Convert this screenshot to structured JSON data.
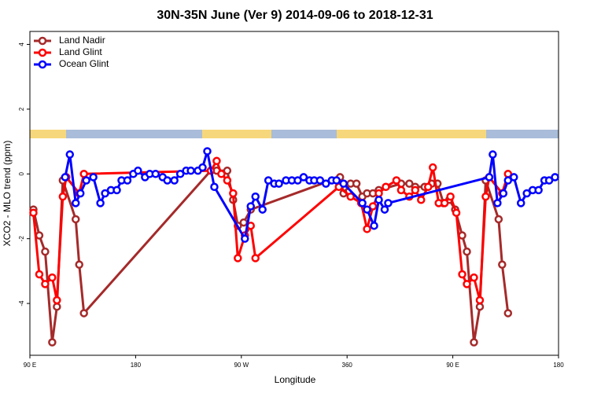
{
  "chart_data": {
    "type": "line",
    "title": "30N-35N June (Ver 9)   2014-09-06 to 2018-12-31",
    "x_label": "Longitude",
    "y_label": "XCO2 - MLO trend (ppm)",
    "xlim": [
      90,
      540
    ],
    "ylim": [
      -5.6,
      4.4
    ],
    "xticks": [
      {
        "value": 90,
        "label": "90 E"
      },
      180,
      {
        "value": 270,
        "label": "90 W"
      },
      360,
      {
        "value": 450,
        "label": "90 E"
      },
      {
        "value": 540,
        "label": "180"
      }
    ],
    "yticks": [
      4,
      2,
      0,
      -2,
      -4
    ],
    "legend": "top-left",
    "series": [
      {
        "name": "Land Nadir",
        "color": "#a52a2a",
        "x": [
          93,
          98,
          103,
          109,
          113,
          118,
          129,
          132,
          136,
          244,
          249,
          258,
          263,
          267,
          272,
          278,
          354,
          357,
          363,
          368,
          373,
          377,
          382,
          387,
          406,
          413,
          418,
          426,
          432,
          437,
          442,
          447,
          452,
          458,
          462,
          468,
          473,
          478,
          489,
          492,
          497
        ],
        "values": [
          -1.1,
          -1.9,
          -2.4,
          -5.2,
          -4.1,
          -0.2,
          -1.4,
          -2.8,
          -4.3,
          0.1,
          0.1,
          0.1,
          -0.8,
          -1.6,
          -1.5,
          -1.1,
          -0.1,
          -0.6,
          -0.3,
          -0.3,
          -0.7,
          -0.6,
          -0.6,
          -0.5,
          -0.3,
          -0.3,
          -0.4,
          -0.4,
          -0.3,
          -0.3,
          -0.9,
          -0.8,
          -1.1,
          -1.9,
          -2.4,
          -5.2,
          -4.1,
          -0.2,
          -1.4,
          -2.8,
          -4.3
        ]
      },
      {
        "name": "Land Glint",
        "color": "#ff0000",
        "x": [
          93,
          98,
          103,
          109,
          113,
          118,
          121,
          132,
          136,
          244,
          249,
          253,
          258,
          263,
          267,
          273,
          278,
          282,
          353,
          363,
          372,
          377,
          382,
          387,
          393,
          402,
          406,
          413,
          418,
          423,
          429,
          433,
          438,
          443,
          448,
          453,
          458,
          462,
          468,
          473,
          478,
          481,
          492,
          497
        ],
        "values": [
          -1.2,
          -3.1,
          -3.4,
          -3.2,
          -3.9,
          -0.7,
          -0.1,
          -0.6,
          0.0,
          0.1,
          0.4,
          0.0,
          -0.2,
          -0.6,
          -2.6,
          -1.9,
          -1.6,
          -2.6,
          -0.4,
          -0.7,
          -0.9,
          -1.7,
          -1.0,
          -0.6,
          -0.4,
          -0.2,
          -0.5,
          -0.7,
          -0.5,
          -0.8,
          -0.4,
          0.2,
          -0.9,
          -0.9,
          -0.7,
          -1.2,
          -3.1,
          -3.4,
          -3.2,
          -3.9,
          -0.7,
          -0.1,
          -0.6,
          0.0
        ]
      },
      {
        "name": "Ocean Glint",
        "color": "#0000ff",
        "x": [
          120,
          124,
          129,
          133,
          138,
          144,
          150,
          154,
          159,
          164,
          168,
          173,
          178,
          182,
          188,
          192,
          197,
          203,
          207,
          213,
          218,
          223,
          227,
          233,
          237,
          241,
          247,
          273,
          278,
          282,
          288,
          293,
          298,
          302,
          308,
          313,
          318,
          323,
          328,
          332,
          337,
          342,
          347,
          351,
          357,
          373,
          377,
          383,
          387,
          392,
          395,
          481,
          484,
          488,
          493,
          497,
          502,
          508,
          513,
          518,
          523,
          528,
          532,
          537
        ],
        "values": [
          -0.1,
          0.6,
          -0.9,
          -0.6,
          -0.2,
          -0.1,
          -0.9,
          -0.6,
          -0.5,
          -0.5,
          -0.2,
          -0.2,
          0.0,
          0.1,
          -0.1,
          0.0,
          0.0,
          -0.1,
          -0.2,
          -0.2,
          0.0,
          0.1,
          0.1,
          0.1,
          0.2,
          0.7,
          -0.4,
          -2.0,
          -1.0,
          -0.7,
          -1.1,
          -0.2,
          -0.3,
          -0.3,
          -0.2,
          -0.2,
          -0.2,
          -0.1,
          -0.2,
          -0.2,
          -0.2,
          -0.3,
          -0.2,
          -0.2,
          -0.3,
          -0.9,
          -1.1,
          -1.6,
          -0.8,
          -1.1,
          -0.9,
          -0.1,
          0.6,
          -0.9,
          -0.6,
          -0.2,
          -0.1,
          -0.9,
          -0.6,
          -0.5,
          -0.5,
          -0.2,
          -0.2,
          -0.1
        ]
      }
    ]
  }
}
